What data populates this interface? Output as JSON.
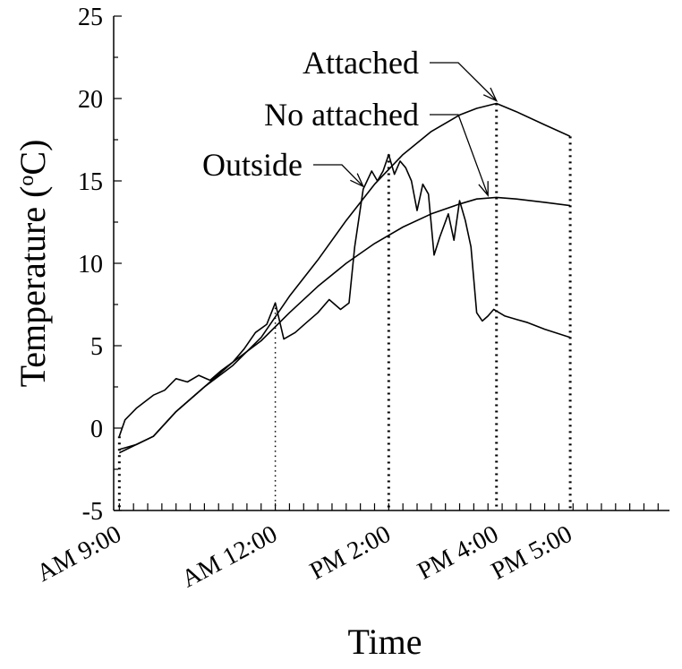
{
  "chart_data": {
    "type": "line",
    "xlabel": "Time",
    "ylabel": "Temperature (°C)",
    "ylabel_parts": {
      "pre": "Temperature (",
      "sup": "o",
      "post": "C)"
    },
    "ylim": [
      -5,
      25
    ],
    "yticks": [
      -5,
      0,
      5,
      10,
      15,
      20,
      25
    ],
    "xlim": [
      8.9,
      18.7
    ],
    "x_ticks": [
      {
        "label": "AM 9:00",
        "hour": 9
      },
      {
        "label": "AM 12:00",
        "hour": 11.75
      },
      {
        "label": "PM 2:00",
        "hour": 13.75
      },
      {
        "label": "PM 4:00",
        "hour": 15.65
      },
      {
        "label": "PM 5:00",
        "hour": 16.95
      }
    ],
    "grid": false,
    "series": [
      {
        "name": "Attached",
        "x": [
          9.0,
          9.3,
          9.6,
          10.0,
          10.5,
          11.0,
          11.5,
          12.0,
          12.5,
          13.0,
          13.5,
          14.0,
          14.5,
          15.0,
          15.3,
          15.65,
          16.0,
          16.5,
          16.95
        ],
        "values": [
          -1.5,
          -1.0,
          -0.5,
          1.0,
          2.5,
          3.8,
          5.5,
          8.0,
          10.2,
          12.6,
          14.8,
          16.6,
          18.0,
          19.0,
          19.4,
          19.7,
          19.2,
          18.4,
          17.7
        ]
      },
      {
        "name": "No attached",
        "x": [
          9.0,
          9.3,
          9.6,
          10.0,
          10.5,
          11.0,
          11.5,
          12.0,
          12.5,
          13.0,
          13.5,
          14.0,
          14.5,
          15.0,
          15.3,
          15.65,
          16.0,
          16.5,
          16.95
        ],
        "values": [
          -1.3,
          -1.0,
          -0.5,
          1.0,
          2.5,
          4.0,
          5.3,
          7.0,
          8.6,
          10.0,
          11.2,
          12.2,
          13.0,
          13.6,
          13.9,
          14.0,
          13.9,
          13.7,
          13.5
        ]
      },
      {
        "name": "Outside",
        "x": [
          9.0,
          9.1,
          9.3,
          9.6,
          9.8,
          10.0,
          10.2,
          10.4,
          10.6,
          10.8,
          11.0,
          11.2,
          11.4,
          11.6,
          11.75,
          11.9,
          12.1,
          12.3,
          12.5,
          12.7,
          12.9,
          13.05,
          13.15,
          13.3,
          13.45,
          13.55,
          13.65,
          13.75,
          13.85,
          13.95,
          14.05,
          14.15,
          14.25,
          14.35,
          14.45,
          14.55,
          14.65,
          14.8,
          14.9,
          15.0,
          15.1,
          15.2,
          15.3,
          15.4,
          15.5,
          15.6,
          15.7,
          15.8,
          16.0,
          16.2,
          16.5,
          16.95
        ],
        "values": [
          -0.5,
          0.5,
          1.2,
          2.0,
          2.3,
          3.0,
          2.8,
          3.2,
          2.9,
          3.5,
          4.0,
          4.8,
          5.8,
          6.3,
          7.6,
          5.4,
          5.8,
          6.4,
          7.0,
          7.8,
          7.2,
          7.6,
          11.0,
          14.5,
          15.6,
          15.0,
          15.6,
          16.6,
          15.4,
          16.2,
          15.8,
          15.0,
          13.2,
          14.8,
          14.2,
          10.5,
          11.6,
          13.0,
          11.4,
          13.8,
          12.6,
          11.0,
          7.0,
          6.5,
          6.8,
          7.2,
          7.0,
          6.8,
          6.6,
          6.4,
          6.0,
          5.5
        ]
      }
    ],
    "annotations": [
      {
        "text": "Attached",
        "series": "Attached",
        "at_hour": 15.65
      },
      {
        "text": "No attached",
        "series": "No attached",
        "at_hour": 15.5
      },
      {
        "text": "Outside",
        "series": "Outside",
        "at_hour": 13.3
      }
    ]
  }
}
